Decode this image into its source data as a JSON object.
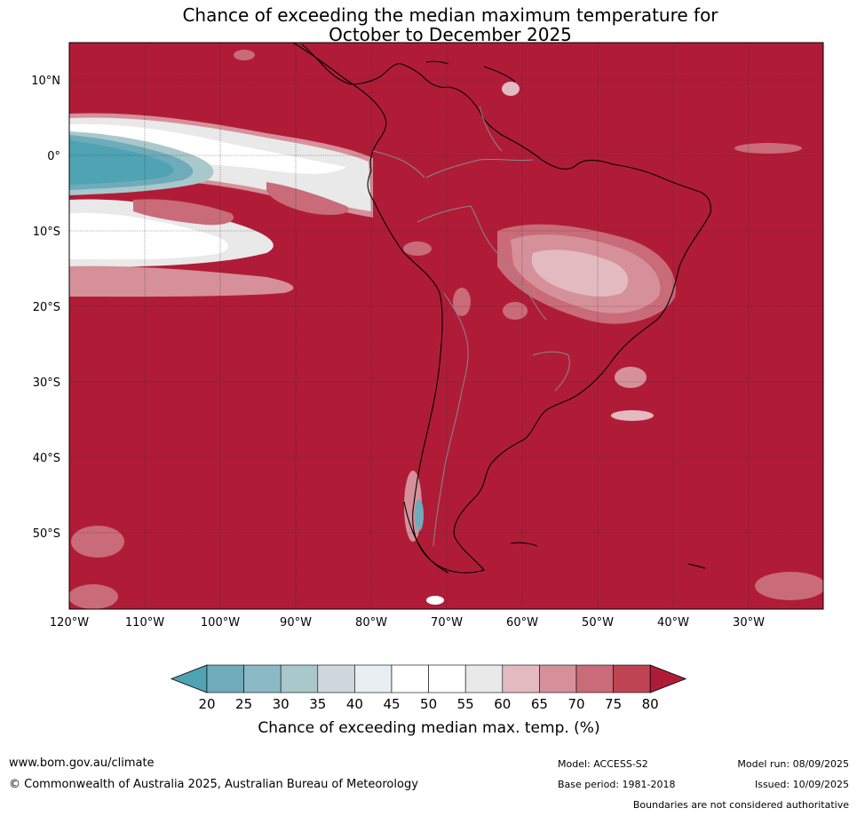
{
  "title": {
    "line1": "Chance of exceeding the median maximum temperature for",
    "line2": "October to December 2025"
  },
  "map": {
    "background_color": "#b01c38",
    "lat_labels": [
      "10°N",
      "0°",
      "10°S",
      "20°S",
      "30°S",
      "40°S",
      "50°S"
    ],
    "lon_labels": [
      "120°W",
      "110°W",
      "100°W",
      "90°W",
      "80°W",
      "70°W",
      "60°W",
      "50°W",
      "40°W",
      "30°W"
    ],
    "gridlines": true
  },
  "colorbar": {
    "ticks": [
      "20",
      "25",
      "30",
      "35",
      "40",
      "45",
      "50",
      "55",
      "60",
      "65",
      "70",
      "75",
      "80"
    ],
    "colors": [
      "#4fa3b2",
      "#6eabbb",
      "#8cb9c6",
      "#a9c8cc",
      "#cfd8dc",
      "#e8eef1",
      "#ffffff",
      "#ffffff",
      "#e9e9e9",
      "#e2bac0",
      "#d6909a",
      "#c96b78",
      "#bf4453",
      "#b01c38"
    ],
    "title": "Chance of exceeding median max. temp. (%)"
  },
  "footer": {
    "site": "www.bom.gov.au/climate",
    "copyright": "© Commonwealth of Australia 2025, Australian Bureau of Meteorology",
    "model": "Model: ACCESS-S2",
    "base_period": "Base period: 1981-2018",
    "model_run": "Model run: 08/09/2025",
    "issued": "Issued: 10/09/2025",
    "boundaries_note": "Boundaries are not considered authoritative"
  }
}
